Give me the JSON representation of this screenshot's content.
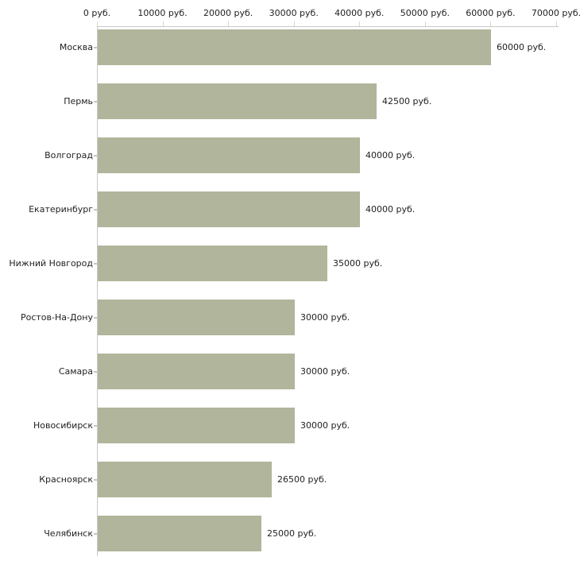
{
  "chart_data": {
    "type": "bar",
    "orientation": "horizontal",
    "title": "",
    "xlabel": "",
    "ylabel": "",
    "xlim": [
      0,
      70000
    ],
    "x_unit": "руб.",
    "grid": false,
    "legend": false,
    "x_ticks": [
      {
        "value": 0,
        "label": "0 руб."
      },
      {
        "value": 10000,
        "label": "10000 руб."
      },
      {
        "value": 20000,
        "label": "20000 руб."
      },
      {
        "value": 30000,
        "label": "30000 руб."
      },
      {
        "value": 40000,
        "label": "40000 руб."
      },
      {
        "value": 50000,
        "label": "50000 руб."
      },
      {
        "value": 60000,
        "label": "60000 руб."
      },
      {
        "value": 70000,
        "label": "70000 руб."
      }
    ],
    "bars": [
      {
        "category": "Москва",
        "value": 60000,
        "label": "60000 руб."
      },
      {
        "category": "Пермь",
        "value": 42500,
        "label": "42500 руб."
      },
      {
        "category": "Волгоград",
        "value": 40000,
        "label": "40000 руб."
      },
      {
        "category": "Екатеринбург",
        "value": 40000,
        "label": "40000 руб."
      },
      {
        "category": "Нижний Новгород",
        "value": 35000,
        "label": "35000 руб."
      },
      {
        "category": "Ростов-На-Дону",
        "value": 30000,
        "label": "30000 руб."
      },
      {
        "category": "Самара",
        "value": 30000,
        "label": "30000 руб."
      },
      {
        "category": "Новосибирск",
        "value": 30000,
        "label": "30000 руб."
      },
      {
        "category": "Красноярск",
        "value": 26500,
        "label": "26500 руб."
      },
      {
        "category": "Челябинск",
        "value": 25000,
        "label": "25000 руб."
      }
    ],
    "colors": {
      "bar": "#b1b59b",
      "axis_line": "#c8c8c8",
      "tick_mark": "#d6d9be",
      "category_tick": "#c5c8b0",
      "text": "#1f1f1f",
      "background": "#ffffff"
    }
  }
}
